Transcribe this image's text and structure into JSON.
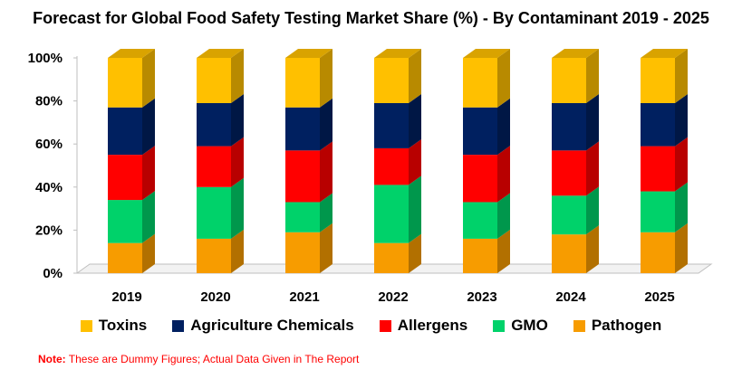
{
  "colors": {
    "Toxins": "#ffc000",
    "Agriculture Chemicals": "#002060",
    "Allergens": "#ff0000",
    "GMO": "#00d26a",
    "Pathogen": "#f79c00",
    "note": "#ff0000"
  },
  "note": {
    "label": "Note:",
    "text": " These are Dummy Figures; Actual Data Given in The Report"
  },
  "chart_data": {
    "type": "bar",
    "stacked": true,
    "style": "3d",
    "title": "Forecast for Global Food Safety Testing Market Share (%) - By Contaminant 2019 - 2025",
    "categories": [
      "2019",
      "2020",
      "2021",
      "2022",
      "2023",
      "2024",
      "2025"
    ],
    "ylim": [
      0,
      100
    ],
    "yticks": [
      "0%",
      "20%",
      "40%",
      "60%",
      "80%",
      "100%"
    ],
    "legend_position": "bottom",
    "series": [
      {
        "name": "Pathogen",
        "values": [
          14,
          16,
          19,
          14,
          16,
          18,
          19
        ]
      },
      {
        "name": "GMO",
        "values": [
          20,
          24,
          14,
          27,
          17,
          18,
          19
        ]
      },
      {
        "name": "Allergens",
        "values": [
          21,
          19,
          24,
          17,
          22,
          21,
          21
        ]
      },
      {
        "name": "Agriculture Chemicals",
        "values": [
          22,
          20,
          20,
          21,
          22,
          22,
          20
        ]
      },
      {
        "name": "Toxins",
        "values": [
          23,
          21,
          23,
          21,
          23,
          21,
          21
        ]
      }
    ],
    "legend_order": [
      "Toxins",
      "Agriculture Chemicals",
      "Allergens",
      "GMO",
      "Pathogen"
    ]
  }
}
